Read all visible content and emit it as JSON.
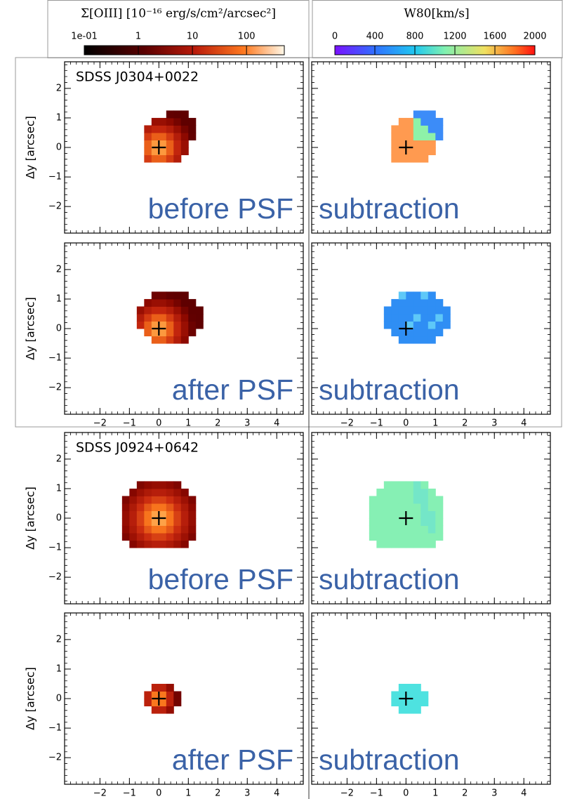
{
  "colorbars": [
    {
      "label": "Σ[OIII] [10⁻¹⁶ erg/s/cm²/arcsec²]",
      "scale": "log",
      "lim": [
        0.1,
        500
      ],
      "ticks": [
        {
          "value": 0.1,
          "label": "1e-01"
        },
        1,
        10,
        100
      ]
    },
    {
      "label": "W80[km/s]",
      "scale": "linear",
      "lim": [
        0,
        2000
      ],
      "ticks": [
        0,
        400,
        800,
        1200,
        1600,
        2000
      ]
    }
  ],
  "axes": {
    "xlim": [
      -3.2,
      4.9
    ],
    "ylim": [
      -2.9,
      2.9
    ],
    "xticks": [
      {
        "value": -2,
        "label": "−2"
      },
      {
        "value": -1,
        "label": "−1"
      },
      0,
      1,
      2,
      3,
      4
    ],
    "yticks": [
      {
        "value": -2,
        "label": "−2"
      },
      {
        "value": -1,
        "label": "−1"
      },
      0,
      1,
      2
    ],
    "ylabel": "Δy [arcsec]"
  },
  "objects": [
    {
      "name": "SDSS J0304+0022",
      "rows": [
        {
          "left": "before PSF",
          "right": "subtraction"
        },
        {
          "left": "after PSF",
          "right": "subtraction"
        }
      ]
    },
    {
      "name": "SDSS J0924+0642",
      "rows": [
        {
          "left": "before PSF",
          "right": "subtraction"
        },
        {
          "left": "after PSF",
          "right": "subtraction"
        }
      ]
    }
  ]
}
